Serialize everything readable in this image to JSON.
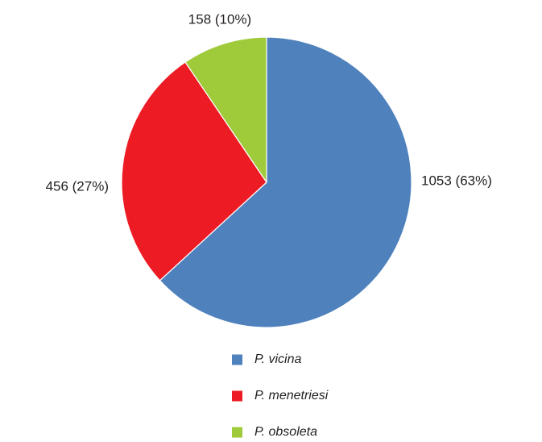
{
  "chart_data": {
    "type": "pie",
    "title": "",
    "slices": [
      {
        "name": "P. vicina",
        "value": 1053,
        "percent": 63,
        "label": "1053  (63%)",
        "color": "#4f81bd"
      },
      {
        "name": "P. menetriesi",
        "value": 456,
        "percent": 27,
        "label": "456  (27%)",
        "color": "#ed1c24"
      },
      {
        "name": "P. obsoleta",
        "value": 158,
        "percent": 10,
        "label": "158  (10%)",
        "color": "#9fcb3b"
      }
    ],
    "start_angle": "12 o'clock",
    "direction": "clockwise",
    "legend": {
      "placement": "bottom",
      "entries": [
        "P. vicina",
        "P. menetriesi",
        "P. obsoleta"
      ]
    }
  }
}
